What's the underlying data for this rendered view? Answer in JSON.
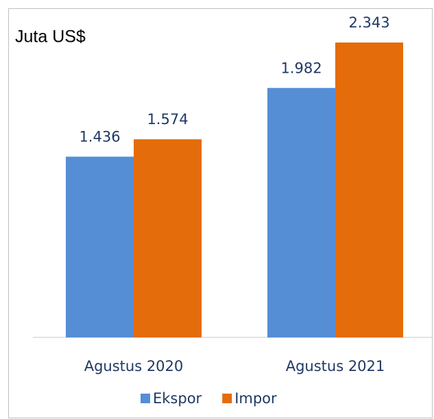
{
  "chart_data": {
    "type": "bar",
    "title": "Juta US$",
    "categories": [
      "Agustus 2020",
      "Agustus 2021"
    ],
    "series": [
      {
        "name": "Ekspor",
        "color": "#558ed5",
        "values": [
          1436,
          1982
        ],
        "value_labels": [
          "1.436",
          "1.982"
        ]
      },
      {
        "name": "Impor",
        "color": "#e46c0a",
        "values": [
          1574,
          2343
        ],
        "value_labels": [
          "1.574",
          "2.343"
        ]
      }
    ],
    "legend": "bottom"
  }
}
